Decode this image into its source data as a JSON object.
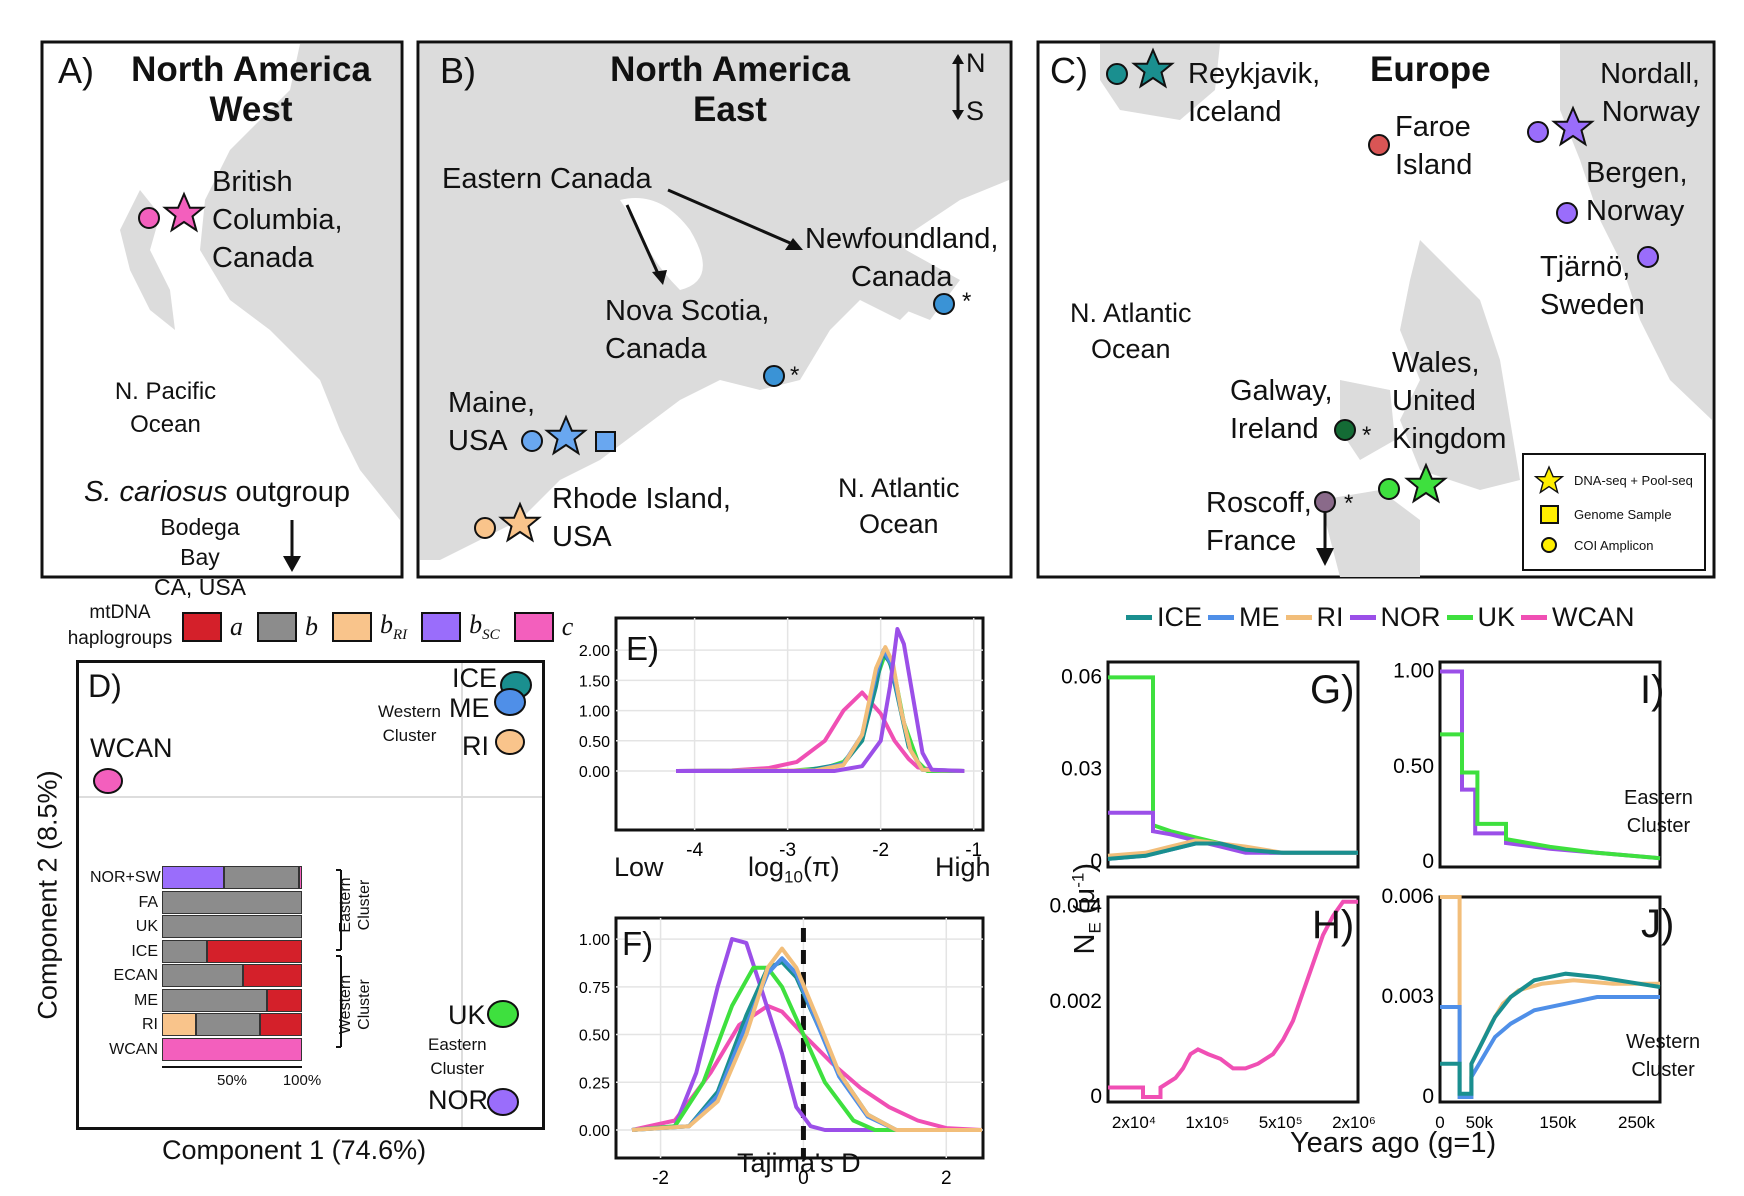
{
  "maps": {
    "a": {
      "letter": "A)",
      "title1": "North America",
      "title2": "West",
      "site1": "British",
      "site2": "Columbia,",
      "site3": "Canada",
      "ocean1": "N. Pacific",
      "ocean2": "Ocean",
      "outgroup_species": "S. cariosus",
      "outgroup_word": " outgroup",
      "out1": "Bodega Bay",
      "out2": "CA, USA"
    },
    "b": {
      "letter": "B)",
      "title1": "North America",
      "title2": "East",
      "compass_n": "N",
      "compass_s": "S",
      "ecan": "Eastern Canada",
      "nf1": "Newfoundland,",
      "nf2": "Canada",
      "ns1": "Nova Scotia,",
      "ns2": "Canada",
      "me1": "Maine,",
      "me2": "USA",
      "ri1": "Rhode Island,",
      "ri2": "USA",
      "ocean1": "N. Atlantic",
      "ocean2": "Ocean",
      "star": "*"
    },
    "c": {
      "letter": "C)",
      "title": "Europe",
      "rk1": "Reykjavik,",
      "rk2": "Iceland",
      "fa1": "Faroe",
      "fa2": "Island",
      "nd1": "Nordall,",
      "nd2": "Norway",
      "bg1": "Bergen,",
      "bg2": "Norway",
      "tj1": "Tjärnö,",
      "tj2": "Sweden",
      "ocean1": "N. Atlantic",
      "ocean2": "Ocean",
      "gw1": "Galway,",
      "gw2": "Ireland",
      "wl1": "Wales,",
      "wl2": "United",
      "wl3": "Kingdom",
      "rs1": "Roscoff,",
      "rs2": "France",
      "star": "*"
    },
    "legend": {
      "l1": "DNA-seq + Pool-seq",
      "l2": "Genome Sample",
      "l3": "COI Amplicon"
    }
  },
  "haplogroups": {
    "title1": "mtDNA",
    "title2": "haplogroups",
    "items": [
      {
        "base": "a",
        "sub": "",
        "color": "#d4202a"
      },
      {
        "base": "b",
        "sub": "",
        "color": "#8c8c8c"
      },
      {
        "base": "b",
        "sub": "RI",
        "color": "#f9c48b"
      },
      {
        "base": "b",
        "sub": "SC",
        "color": "#9a6dfb"
      },
      {
        "base": "c",
        "sub": "",
        "color": "#f35fbd"
      }
    ]
  },
  "pca": {
    "letter": "D)",
    "xlabel": "Component 1 (74.6%)",
    "ylabel": "Component 2 (8.5%)",
    "labels": {
      "wcan": "WCAN",
      "ice": "ICE",
      "me": "ME",
      "ri": "RI",
      "uk": "UK",
      "nor": "NOR",
      "west1": "Western",
      "west2": "Cluster",
      "east1": "Eastern",
      "east2": "Cluster"
    },
    "bar_rows": [
      {
        "label": "NOR+SW",
        "fracs": [
          0.0,
          0.54,
          0.0,
          0.44,
          0.02
        ]
      },
      {
        "label": "FA",
        "fracs": [
          0.0,
          1.0,
          0.0,
          0.0,
          0.0
        ]
      },
      {
        "label": "UK",
        "fracs": [
          0.0,
          1.0,
          0.0,
          0.0,
          0.0
        ]
      },
      {
        "label": "ICE",
        "fracs": [
          0.68,
          0.32,
          0.0,
          0.0,
          0.0
        ]
      },
      {
        "label": "ECAN",
        "fracs": [
          0.42,
          0.58,
          0.0,
          0.0,
          0.0
        ]
      },
      {
        "label": "ME",
        "fracs": [
          0.25,
          0.75,
          0.0,
          0.0,
          0.0
        ]
      },
      {
        "label": "RI",
        "fracs": [
          0.3,
          0.46,
          0.24,
          0.0,
          0.0
        ]
      },
      {
        "label": "WCAN",
        "fracs": [
          0.0,
          0.0,
          0.0,
          0.0,
          1.0
        ]
      }
    ],
    "bar_ticks": [
      "50%",
      "100%"
    ],
    "bracket_east1": "Eastern",
    "bracket_east2": "Cluster",
    "bracket_west1": "Western",
    "bracket_west2": "Cluster"
  },
  "legend_top": {
    "series": [
      {
        "name": "ICE",
        "color": "#1a8f8f"
      },
      {
        "name": "ME",
        "color": "#4f8fe8"
      },
      {
        "name": "RI",
        "color": "#f2be7a"
      },
      {
        "name": "NOR",
        "color": "#9b4fe8"
      },
      {
        "name": "UK",
        "color": "#3ee03e"
      },
      {
        "name": "WCAN",
        "color": "#f04fb4"
      }
    ]
  },
  "chart_data": [
    {
      "panel": "E)",
      "type": "line",
      "xlabel": "log10(π)",
      "xlabel_low": "Low",
      "xlabel_high": "High",
      "xlim": [
        -4.2,
        -0.9
      ],
      "ylim": [
        0,
        2.4
      ],
      "xticks": [
        "-4",
        "-3",
        "-2",
        "-1"
      ],
      "yticks": [
        "0.00",
        "0.50",
        "1.00",
        "1.50",
        "2.00"
      ],
      "series": [
        {
          "name": "WCAN",
          "x": [
            -4.2,
            -3.6,
            -3.2,
            -2.9,
            -2.6,
            -2.4,
            -2.2,
            -2.0,
            -1.85,
            -1.7,
            -1.6,
            -1.4,
            -1.1
          ],
          "y": [
            0.0,
            0.01,
            0.05,
            0.15,
            0.5,
            1.0,
            1.3,
            0.95,
            0.5,
            0.2,
            0.06,
            0.01,
            0.0
          ]
        },
        {
          "name": "UK",
          "x": [
            -4.2,
            -3.0,
            -2.6,
            -2.4,
            -2.2,
            -2.05,
            -1.95,
            -1.85,
            -1.75,
            -1.6,
            -1.5,
            -1.1
          ],
          "y": [
            0.0,
            0.0,
            0.05,
            0.15,
            0.5,
            1.5,
            1.95,
            1.6,
            0.8,
            0.15,
            0.0,
            0.0
          ]
        },
        {
          "name": "ICE",
          "x": [
            -4.2,
            -2.8,
            -2.4,
            -2.2,
            -2.05,
            -1.98,
            -1.9,
            -1.8,
            -1.7,
            -1.55,
            -1.1
          ],
          "y": [
            0.0,
            0.01,
            0.12,
            0.5,
            1.4,
            1.95,
            1.8,
            1.1,
            0.4,
            0.02,
            0.0
          ]
        },
        {
          "name": "ME",
          "x": [
            -4.2,
            -2.7,
            -2.4,
            -2.2,
            -2.05,
            -1.97,
            -1.88,
            -1.78,
            -1.68,
            -1.55,
            -1.1
          ],
          "y": [
            0.0,
            0.01,
            0.12,
            0.6,
            1.6,
            2.0,
            1.75,
            1.0,
            0.35,
            0.02,
            0.0
          ]
        },
        {
          "name": "RI",
          "x": [
            -4.2,
            -2.7,
            -2.4,
            -2.2,
            -2.05,
            -1.95,
            -1.87,
            -1.78,
            -1.68,
            -1.55,
            -1.1
          ],
          "y": [
            0.0,
            0.01,
            0.1,
            0.6,
            1.7,
            2.05,
            1.8,
            1.0,
            0.35,
            0.02,
            0.0
          ]
        },
        {
          "name": "NOR",
          "x": [
            -4.2,
            -2.5,
            -2.2,
            -2.0,
            -1.9,
            -1.82,
            -1.75,
            -1.65,
            -1.55,
            -1.45,
            -1.1
          ],
          "y": [
            0.0,
            0.0,
            0.08,
            0.5,
            1.4,
            2.35,
            2.1,
            1.2,
            0.3,
            0.02,
            0.0
          ]
        }
      ]
    },
    {
      "panel": "F)",
      "type": "line",
      "xlabel": "Tajima's D",
      "xlim": [
        -2.4,
        2.5
      ],
      "ylim": [
        0,
        1.1
      ],
      "xticks": [
        "-2",
        "0",
        "2"
      ],
      "yticks": [
        "0.00",
        "0.25",
        "0.50",
        "0.75",
        "1.00"
      ],
      "series": [
        {
          "name": "WCAN",
          "x": [
            -2.4,
            -1.8,
            -1.3,
            -0.9,
            -0.5,
            -0.3,
            0.0,
            0.4,
            0.8,
            1.2,
            1.6,
            2.0,
            2.5
          ],
          "y": [
            0.0,
            0.05,
            0.3,
            0.55,
            0.65,
            0.62,
            0.5,
            0.35,
            0.22,
            0.12,
            0.05,
            0.01,
            0.0
          ]
        },
        {
          "name": "NOR",
          "x": [
            -2.4,
            -1.8,
            -1.5,
            -1.2,
            -1.0,
            -0.8,
            -0.6,
            -0.3,
            -0.1,
            0.1,
            0.3,
            2.5
          ],
          "y": [
            0.0,
            0.02,
            0.3,
            0.75,
            1.0,
            0.98,
            0.75,
            0.4,
            0.12,
            0.02,
            0.0,
            0.0
          ]
        },
        {
          "name": "UK",
          "x": [
            -2.4,
            -1.8,
            -1.4,
            -1.0,
            -0.7,
            -0.5,
            -0.3,
            0.0,
            0.3,
            0.7,
            1.0,
            2.5
          ],
          "y": [
            0.0,
            0.02,
            0.25,
            0.65,
            0.85,
            0.85,
            0.75,
            0.5,
            0.25,
            0.05,
            0.0,
            0.0
          ]
        },
        {
          "name": "ICE",
          "x": [
            -2.4,
            -1.6,
            -1.2,
            -0.8,
            -0.5,
            -0.3,
            -0.1,
            0.2,
            0.5,
            0.9,
            1.3,
            2.5
          ],
          "y": [
            0.0,
            0.02,
            0.2,
            0.6,
            0.85,
            0.88,
            0.8,
            0.55,
            0.3,
            0.08,
            0.0,
            0.0
          ]
        },
        {
          "name": "ME",
          "x": [
            -2.4,
            -1.6,
            -1.2,
            -0.8,
            -0.5,
            -0.3,
            -0.1,
            0.2,
            0.5,
            0.9,
            1.3,
            2.5
          ],
          "y": [
            0.0,
            0.02,
            0.18,
            0.55,
            0.82,
            0.9,
            0.82,
            0.55,
            0.28,
            0.07,
            0.0,
            0.0
          ]
        },
        {
          "name": "RI",
          "x": [
            -2.4,
            -1.6,
            -1.2,
            -0.8,
            -0.5,
            -0.3,
            -0.1,
            0.2,
            0.5,
            0.9,
            1.3,
            2.5
          ],
          "y": [
            0.0,
            0.02,
            0.15,
            0.5,
            0.85,
            0.95,
            0.85,
            0.58,
            0.3,
            0.08,
            0.0,
            0.0
          ]
        }
      ]
    },
    {
      "panel": "G)",
      "type": "line",
      "step": true,
      "xlim": [
        0,
        1
      ],
      "ylim": [
        0,
        0.065
      ],
      "yticks": [
        "0",
        "0.03",
        "0.06"
      ],
      "series": [
        {
          "name": "UK",
          "x": [
            0.0,
            0.18,
            0.18,
            0.25,
            0.35,
            0.45,
            0.55,
            0.65,
            1.0
          ],
          "y": [
            0.06,
            0.06,
            0.012,
            0.01,
            0.008,
            0.006,
            0.004,
            0.003,
            0.003
          ]
        },
        {
          "name": "NOR",
          "x": [
            0.0,
            0.18,
            0.18,
            0.25,
            0.35,
            0.45,
            0.55,
            1.0
          ],
          "y": [
            0.016,
            0.016,
            0.01,
            0.009,
            0.007,
            0.005,
            0.003,
            0.003
          ]
        },
        {
          "name": "ME",
          "x": [
            0.0,
            0.15,
            0.25,
            0.35,
            0.45,
            0.55,
            0.7,
            1.0
          ],
          "y": [
            0.001,
            0.002,
            0.004,
            0.006,
            0.006,
            0.004,
            0.003,
            0.003
          ]
        },
        {
          "name": "RI",
          "x": [
            0.0,
            0.15,
            0.25,
            0.35,
            0.45,
            0.55,
            0.7,
            1.0
          ],
          "y": [
            0.002,
            0.003,
            0.005,
            0.007,
            0.006,
            0.005,
            0.003,
            0.003
          ]
        },
        {
          "name": "ICE",
          "x": [
            0.0,
            0.15,
            0.25,
            0.35,
            0.45,
            0.55,
            0.7,
            1.0
          ],
          "y": [
            0.001,
            0.002,
            0.004,
            0.006,
            0.006,
            0.004,
            0.003,
            0.003
          ]
        }
      ]
    },
    {
      "panel": "H)",
      "type": "line",
      "step": true,
      "xticks": [
        "2x10⁴",
        "1x10⁵",
        "5x10⁵",
        "2x10⁶"
      ],
      "ylim": [
        0,
        0.0042
      ],
      "yticks": [
        "0",
        "0.002",
        "0.004"
      ],
      "series": [
        {
          "name": "WCAN",
          "x": [
            0.0,
            0.14,
            0.14,
            0.21,
            0.21,
            0.27,
            0.3,
            0.33,
            0.36,
            0.4,
            0.45,
            0.5,
            0.55,
            0.6,
            0.66,
            0.7,
            0.74,
            0.78,
            0.82,
            0.86,
            0.9,
            0.94,
            1.0
          ],
          "y": [
            0.0002,
            0.0002,
            0.0,
            0.0,
            0.0002,
            0.0004,
            0.0006,
            0.0009,
            0.001,
            0.0009,
            0.0008,
            0.0006,
            0.0006,
            0.0007,
            0.0009,
            0.0012,
            0.0016,
            0.0022,
            0.0028,
            0.0034,
            0.0038,
            0.0041,
            0.0041
          ]
        }
      ]
    },
    {
      "panel": "I)",
      "type": "line",
      "step": true,
      "ylim": [
        0,
        1.05
      ],
      "yticks": [
        "0",
        "0.50",
        "1.00"
      ],
      "annotation1": "Eastern",
      "annotation2": "Cluster",
      "series": [
        {
          "name": "NOR",
          "x": [
            0.0,
            0.1,
            0.1,
            0.16,
            0.16,
            0.3,
            0.3,
            0.5,
            0.7,
            1.0
          ],
          "y": [
            1.0,
            1.0,
            0.38,
            0.38,
            0.15,
            0.15,
            0.1,
            0.07,
            0.05,
            0.02
          ]
        },
        {
          "name": "UK",
          "x": [
            0.0,
            0.1,
            0.1,
            0.17,
            0.17,
            0.3,
            0.3,
            0.5,
            0.7,
            1.0
          ],
          "y": [
            0.67,
            0.67,
            0.47,
            0.47,
            0.2,
            0.2,
            0.12,
            0.08,
            0.05,
            0.02
          ]
        }
      ]
    },
    {
      "panel": "J)",
      "type": "line",
      "step": true,
      "xlim": [
        0,
        280000
      ],
      "ylim": [
        0,
        0.006
      ],
      "xticks": [
        "0",
        "50k",
        "150k",
        "250k"
      ],
      "yticks": [
        "0",
        "0.003",
        "0.006"
      ],
      "annotation1": "Western",
      "annotation2": "Cluster",
      "series": [
        {
          "name": "RI",
          "x": [
            0,
            25000,
            25000,
            40000,
            40000,
            55000,
            65000,
            80000,
            100000,
            130000,
            170000,
            220000,
            280000
          ],
          "y": [
            0.006,
            0.006,
            0.0,
            0.0,
            0.001,
            0.0017,
            0.0022,
            0.0028,
            0.0032,
            0.0034,
            0.0035,
            0.0034,
            0.0034
          ]
        },
        {
          "name": "ME",
          "x": [
            0,
            25000,
            25000,
            40000,
            40000,
            55000,
            70000,
            90000,
            120000,
            160000,
            200000,
            280000
          ],
          "y": [
            0.0027,
            0.0027,
            0.0,
            0.0,
            0.0006,
            0.0012,
            0.0018,
            0.0022,
            0.0026,
            0.0028,
            0.003,
            0.003
          ]
        },
        {
          "name": "ICE",
          "x": [
            0,
            25000,
            25000,
            40000,
            40000,
            55000,
            70000,
            90000,
            120000,
            160000,
            200000,
            280000
          ],
          "y": [
            0.001,
            0.001,
            0.0001,
            0.0001,
            0.001,
            0.0017,
            0.0024,
            0.003,
            0.0035,
            0.0037,
            0.0036,
            0.0033
          ]
        }
      ]
    }
  ],
  "ne_axis": {
    "ylabel_main": "N",
    "ylabel_sub": "E",
    "ylabel_unit": " (μ",
    "ylabel_exp": "-1",
    "ylabel_close": ")",
    "xlabel": "Years ago (g=1)"
  }
}
